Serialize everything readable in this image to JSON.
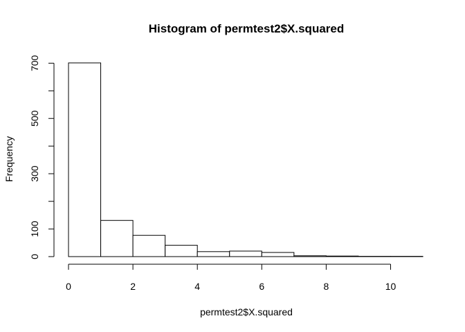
{
  "chart_data": {
    "type": "bar",
    "title": "Histogram of permtest2$X.squared",
    "xlabel": "permtest2$X.squared",
    "ylabel": "Frequency",
    "bins": [
      {
        "start": 0,
        "end": 1,
        "count": 701
      },
      {
        "start": 1,
        "end": 2,
        "count": 131
      },
      {
        "start": 2,
        "end": 3,
        "count": 77
      },
      {
        "start": 3,
        "end": 4,
        "count": 41
      },
      {
        "start": 4,
        "end": 5,
        "count": 18
      },
      {
        "start": 5,
        "end": 6,
        "count": 20
      },
      {
        "start": 6,
        "end": 7,
        "count": 15
      },
      {
        "start": 7,
        "end": 8,
        "count": 3
      },
      {
        "start": 8,
        "end": 9,
        "count": 2
      },
      {
        "start": 9,
        "end": 10,
        "count": 1
      },
      {
        "start": 10,
        "end": 11,
        "count": 1
      }
    ],
    "xlim": [
      0,
      11
    ],
    "ylim": [
      0,
      701
    ],
    "x_ticks": [
      0,
      2,
      4,
      6,
      8,
      10
    ],
    "y_ticks": [
      0,
      100,
      200,
      300,
      400,
      500,
      600,
      700
    ],
    "y_tick_labels": [
      "0",
      "100",
      "",
      "300",
      "",
      "500",
      "",
      "700"
    ],
    "grid": false
  }
}
